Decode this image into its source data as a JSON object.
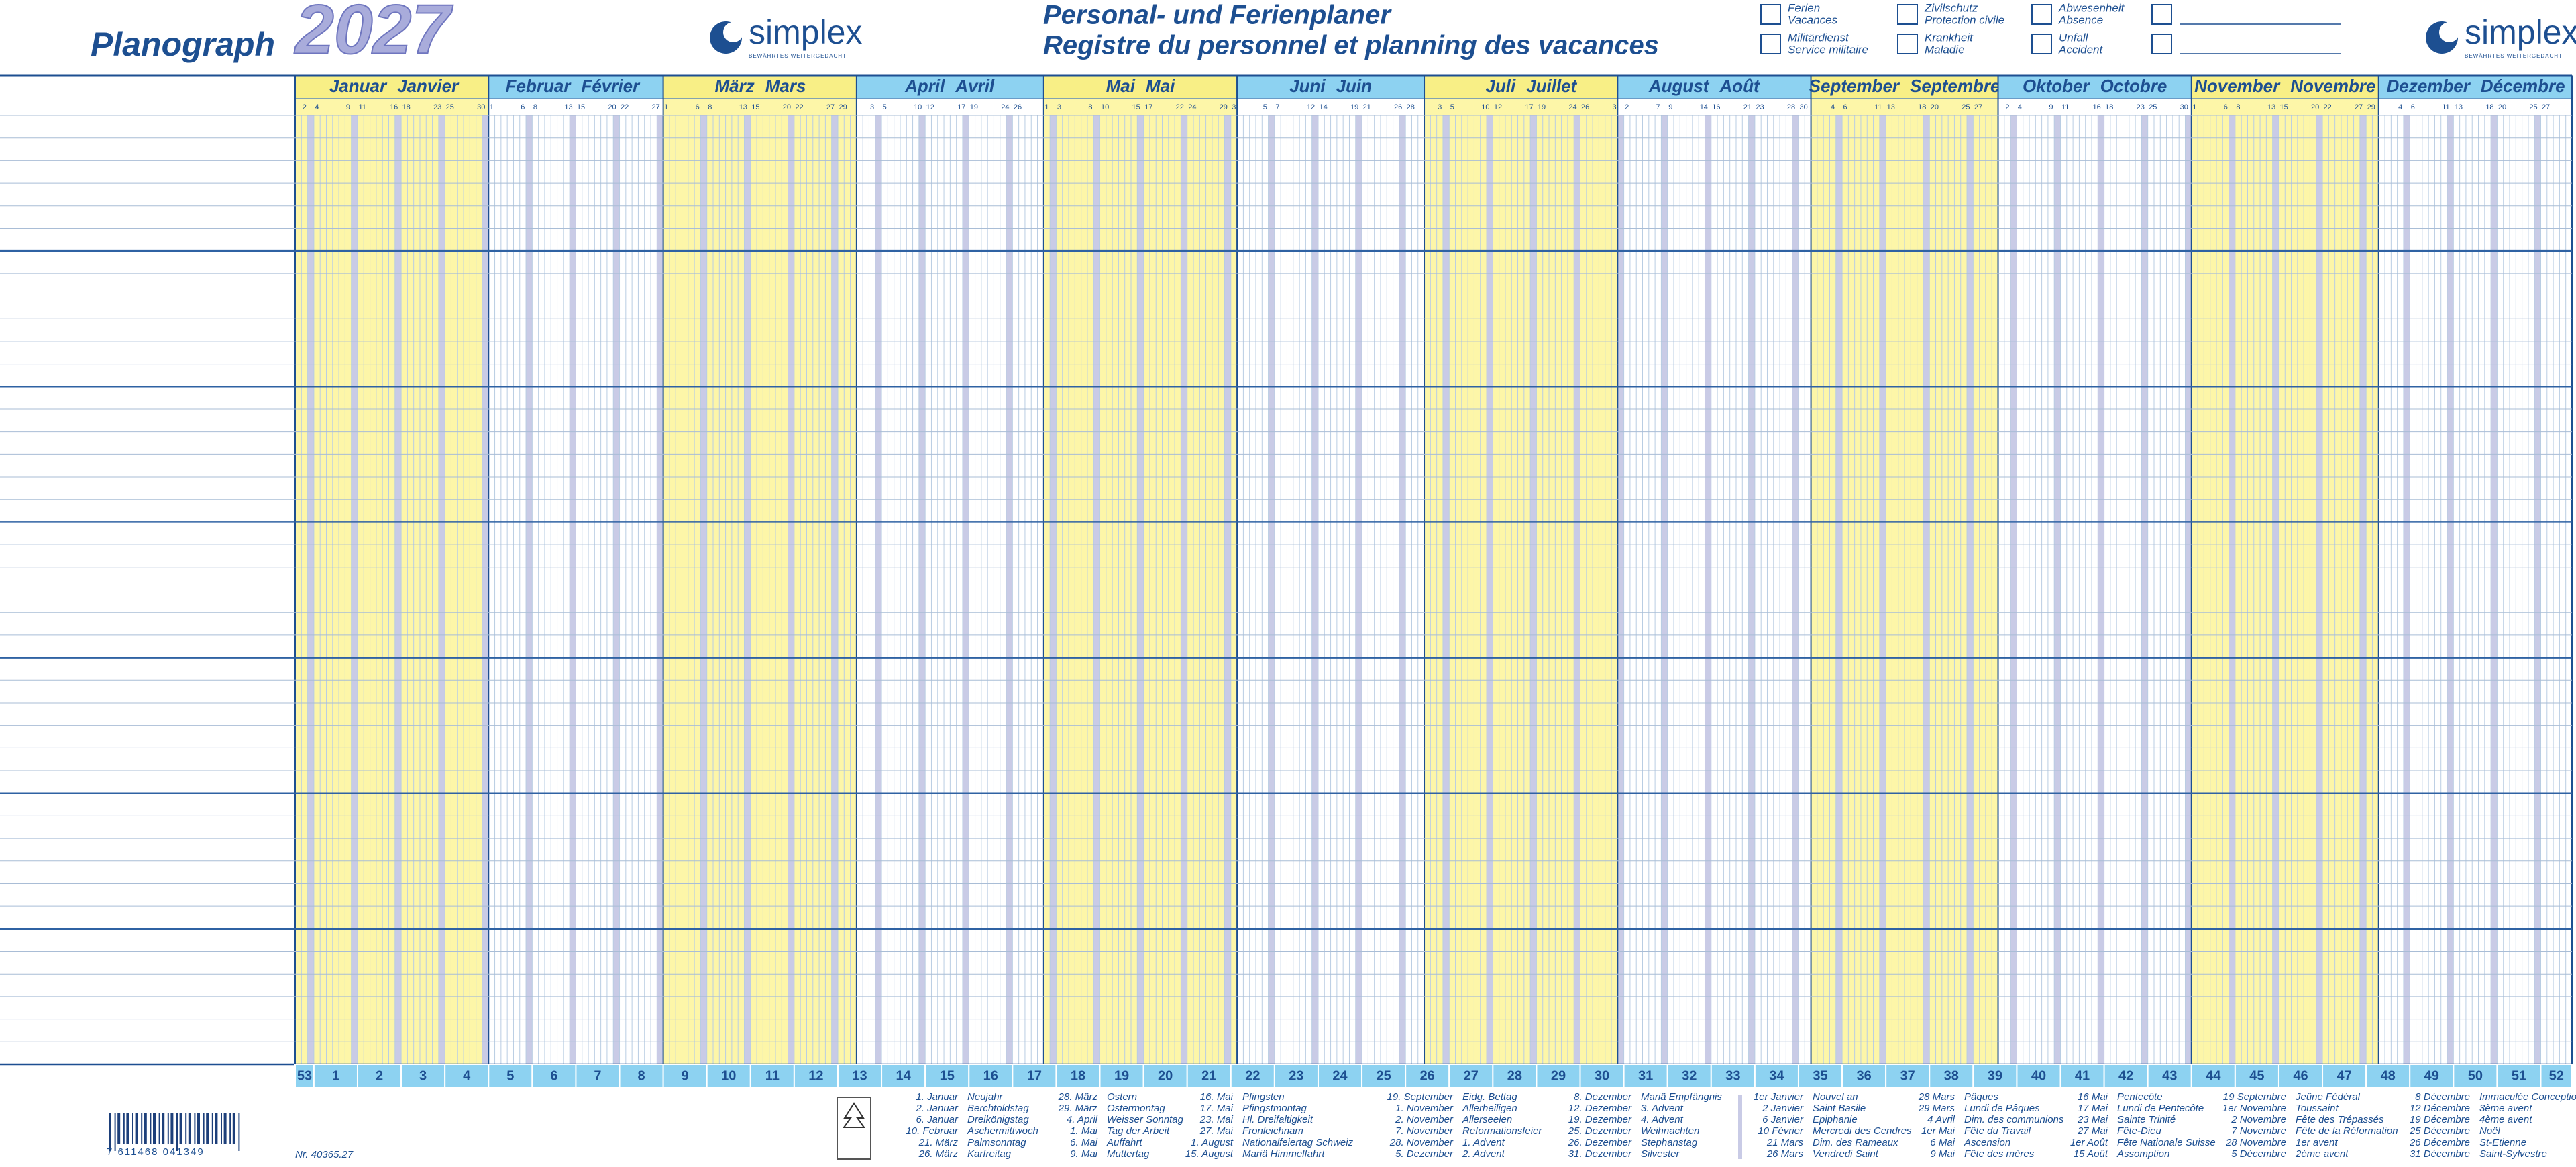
{
  "header": {
    "brand": "Planograph",
    "year": "2027",
    "logo": "simplex",
    "logo_tagline": "BEWÄHRTES WEITERGEDACHT",
    "title_de": "Personal- und Ferienplaner",
    "title_fr": "Registre du personnel et planning des vacances"
  },
  "legend": [
    {
      "de": "Ferien",
      "fr": "Vacances"
    },
    {
      "de": "Militärdienst",
      "fr": "Service militaire"
    },
    {
      "de": "Zivilschutz",
      "fr": "Protection civile"
    },
    {
      "de": "Krankheit",
      "fr": "Maladie"
    },
    {
      "de": "Abwesenheit",
      "fr": "Absence"
    },
    {
      "de": "Unfall",
      "fr": "Accident"
    }
  ],
  "months": [
    {
      "de": "Januar",
      "fr": "Janvier",
      "days": [
        2,
        4,
        9,
        11,
        16,
        18,
        23,
        25,
        30
      ]
    },
    {
      "de": "Februar",
      "fr": "Février",
      "days": [
        1,
        6,
        8,
        13,
        15,
        20,
        22,
        27
      ]
    },
    {
      "de": "März",
      "fr": "Mars",
      "days": [
        1,
        6,
        8,
        13,
        15,
        20,
        22,
        27,
        29
      ]
    },
    {
      "de": "April",
      "fr": "Avril",
      "days": [
        3,
        5,
        10,
        12,
        17,
        19,
        24,
        26
      ]
    },
    {
      "de": "Mai",
      "fr": "Mai",
      "days": [
        1,
        3,
        8,
        10,
        15,
        17,
        22,
        24,
        29,
        31
      ]
    },
    {
      "de": "Juni",
      "fr": "Juin",
      "days": [
        5,
        7,
        12,
        14,
        19,
        21,
        26,
        28
      ]
    },
    {
      "de": "Juli",
      "fr": "Juillet",
      "days": [
        3,
        5,
        10,
        12,
        17,
        19,
        24,
        26,
        31
      ]
    },
    {
      "de": "August",
      "fr": "Août",
      "days": [
        2,
        7,
        9,
        14,
        16,
        21,
        23,
        28,
        30
      ]
    },
    {
      "de": "September",
      "fr": "Septembre",
      "days": [
        4,
        6,
        11,
        13,
        18,
        20,
        25,
        27
      ]
    },
    {
      "de": "Oktober",
      "fr": "Octobre",
      "days": [
        2,
        4,
        9,
        11,
        16,
        18,
        23,
        25,
        30
      ]
    },
    {
      "de": "November",
      "fr": "Novembre",
      "days": [
        1,
        6,
        8,
        13,
        15,
        20,
        22,
        27,
        29
      ]
    },
    {
      "de": "Dezember",
      "fr": "Décembre",
      "days": [
        4,
        6,
        11,
        13,
        18,
        20,
        25,
        27
      ]
    }
  ],
  "weeks": [
    53,
    1,
    2,
    3,
    4,
    5,
    6,
    7,
    8,
    9,
    10,
    11,
    12,
    13,
    14,
    15,
    16,
    17,
    18,
    19,
    20,
    21,
    22,
    23,
    24,
    25,
    26,
    27,
    28,
    29,
    30,
    31,
    32,
    33,
    34,
    35,
    36,
    37,
    38,
    39,
    40,
    41,
    42,
    43,
    44,
    45,
    46,
    47,
    48,
    49,
    50,
    51,
    52
  ],
  "holidays": [
    [
      {
        "date": "1. Januar",
        "name": "Neujahr"
      },
      {
        "date": "2. Januar",
        "name": "Berchtoldstag"
      },
      {
        "date": "6. Januar",
        "name": "Dreikönigstag"
      },
      {
        "date": "10. Februar",
        "name": "Aschermittwoch"
      },
      {
        "date": "21. März",
        "name": "Palmsonntag"
      },
      {
        "date": "26. März",
        "name": "Karfreitag"
      }
    ],
    [
      {
        "date": "28. März",
        "name": "Ostern"
      },
      {
        "date": "29. März",
        "name": "Ostermontag"
      },
      {
        "date": "4. April",
        "name": "Weisser Sonntag"
      },
      {
        "date": "1. Mai",
        "name": "Tag der Arbeit"
      },
      {
        "date": "6. Mai",
        "name": "Auffahrt"
      },
      {
        "date": "9. Mai",
        "name": "Muttertag"
      }
    ],
    [
      {
        "date": "16. Mai",
        "name": "Pfingsten"
      },
      {
        "date": "17. Mai",
        "name": "Pfingstmontag"
      },
      {
        "date": "23. Mai",
        "name": "Hl. Dreifaltigkeit"
      },
      {
        "date": "27. Mai",
        "name": "Fronleichnam"
      },
      {
        "date": "1. August",
        "name": "Nationalfeiertag Schweiz"
      },
      {
        "date": "15. August",
        "name": "Mariä Himmelfahrt"
      }
    ],
    [
      {
        "date": "19. September",
        "name": "Eidg. Bettag"
      },
      {
        "date": "1. November",
        "name": "Allerheiligen"
      },
      {
        "date": "2. November",
        "name": "Allerseelen"
      },
      {
        "date": "7. November",
        "name": "Reformationsfeier"
      },
      {
        "date": "28. November",
        "name": "1. Advent"
      },
      {
        "date": "5. Dezember",
        "name": "2. Advent"
      }
    ],
    [
      {
        "date": "8. Dezember",
        "name": "Mariä Empfängnis"
      },
      {
        "date": "12. Dezember",
        "name": "3. Advent"
      },
      {
        "date": "19. Dezember",
        "name": "4. Advent"
      },
      {
        "date": "25. Dezember",
        "name": "Weihnachten"
      },
      {
        "date": "26. Dezember",
        "name": "Stephanstag"
      },
      {
        "date": "31. Dezember",
        "name": "Silvester"
      }
    ],
    [
      {
        "date": "1er Janvier",
        "name": "Nouvel an"
      },
      {
        "date": "2 Janvier",
        "name": "Saint Basile"
      },
      {
        "date": "6 Janvier",
        "name": "Epiphanie"
      },
      {
        "date": "10 Février",
        "name": "Mercredi des Cendres"
      },
      {
        "date": "21 Mars",
        "name": "Dim. des Rameaux"
      },
      {
        "date": "26 Mars",
        "name": "Vendredi Saint"
      }
    ],
    [
      {
        "date": "28 Mars",
        "name": "Pâques"
      },
      {
        "date": "29 Mars",
        "name": "Lundi de Pâques"
      },
      {
        "date": "4 Avril",
        "name": "Dim. des communions"
      },
      {
        "date": "1er Mai",
        "name": "Fête du Travail"
      },
      {
        "date": "6 Mai",
        "name": "Ascension"
      },
      {
        "date": "9 Mai",
        "name": "Fête des mères"
      }
    ],
    [
      {
        "date": "16 Mai",
        "name": "Pentecôte"
      },
      {
        "date": "17 Mai",
        "name": "Lundi de Pentecôte"
      },
      {
        "date": "23 Mai",
        "name": "Sainte Trinité"
      },
      {
        "date": "27 Mai",
        "name": "Fête-Dieu"
      },
      {
        "date": "1er Août",
        "name": "Fête Nationale Suisse"
      },
      {
        "date": "15 Août",
        "name": "Assomption"
      }
    ],
    [
      {
        "date": "19 Septembre",
        "name": "Jeûne Fédéral"
      },
      {
        "date": "1er Novembre",
        "name": "Toussaint"
      },
      {
        "date": "2 Novembre",
        "name": "Fête des Trépassés"
      },
      {
        "date": "7 Novembre",
        "name": "Fête de la Réformation"
      },
      {
        "date": "28 Novembre",
        "name": "1er avent"
      },
      {
        "date": "5 Décembre",
        "name": "2ème avent"
      }
    ],
    [
      {
        "date": "8 Décembre",
        "name": "Immaculée Conception"
      },
      {
        "date": "12 Décembre",
        "name": "3ème avent"
      },
      {
        "date": "19 Décembre",
        "name": "4ème avent"
      },
      {
        "date": "25 Décembre",
        "name": "Noël"
      },
      {
        "date": "26 Décembre",
        "name": "St-Etienne"
      },
      {
        "date": "31 Décembre",
        "name": "Saint-Sylvestre"
      }
    ]
  ],
  "footer": {
    "barcode": "7 611468 041349",
    "article": "Nr. 40365.27"
  }
}
